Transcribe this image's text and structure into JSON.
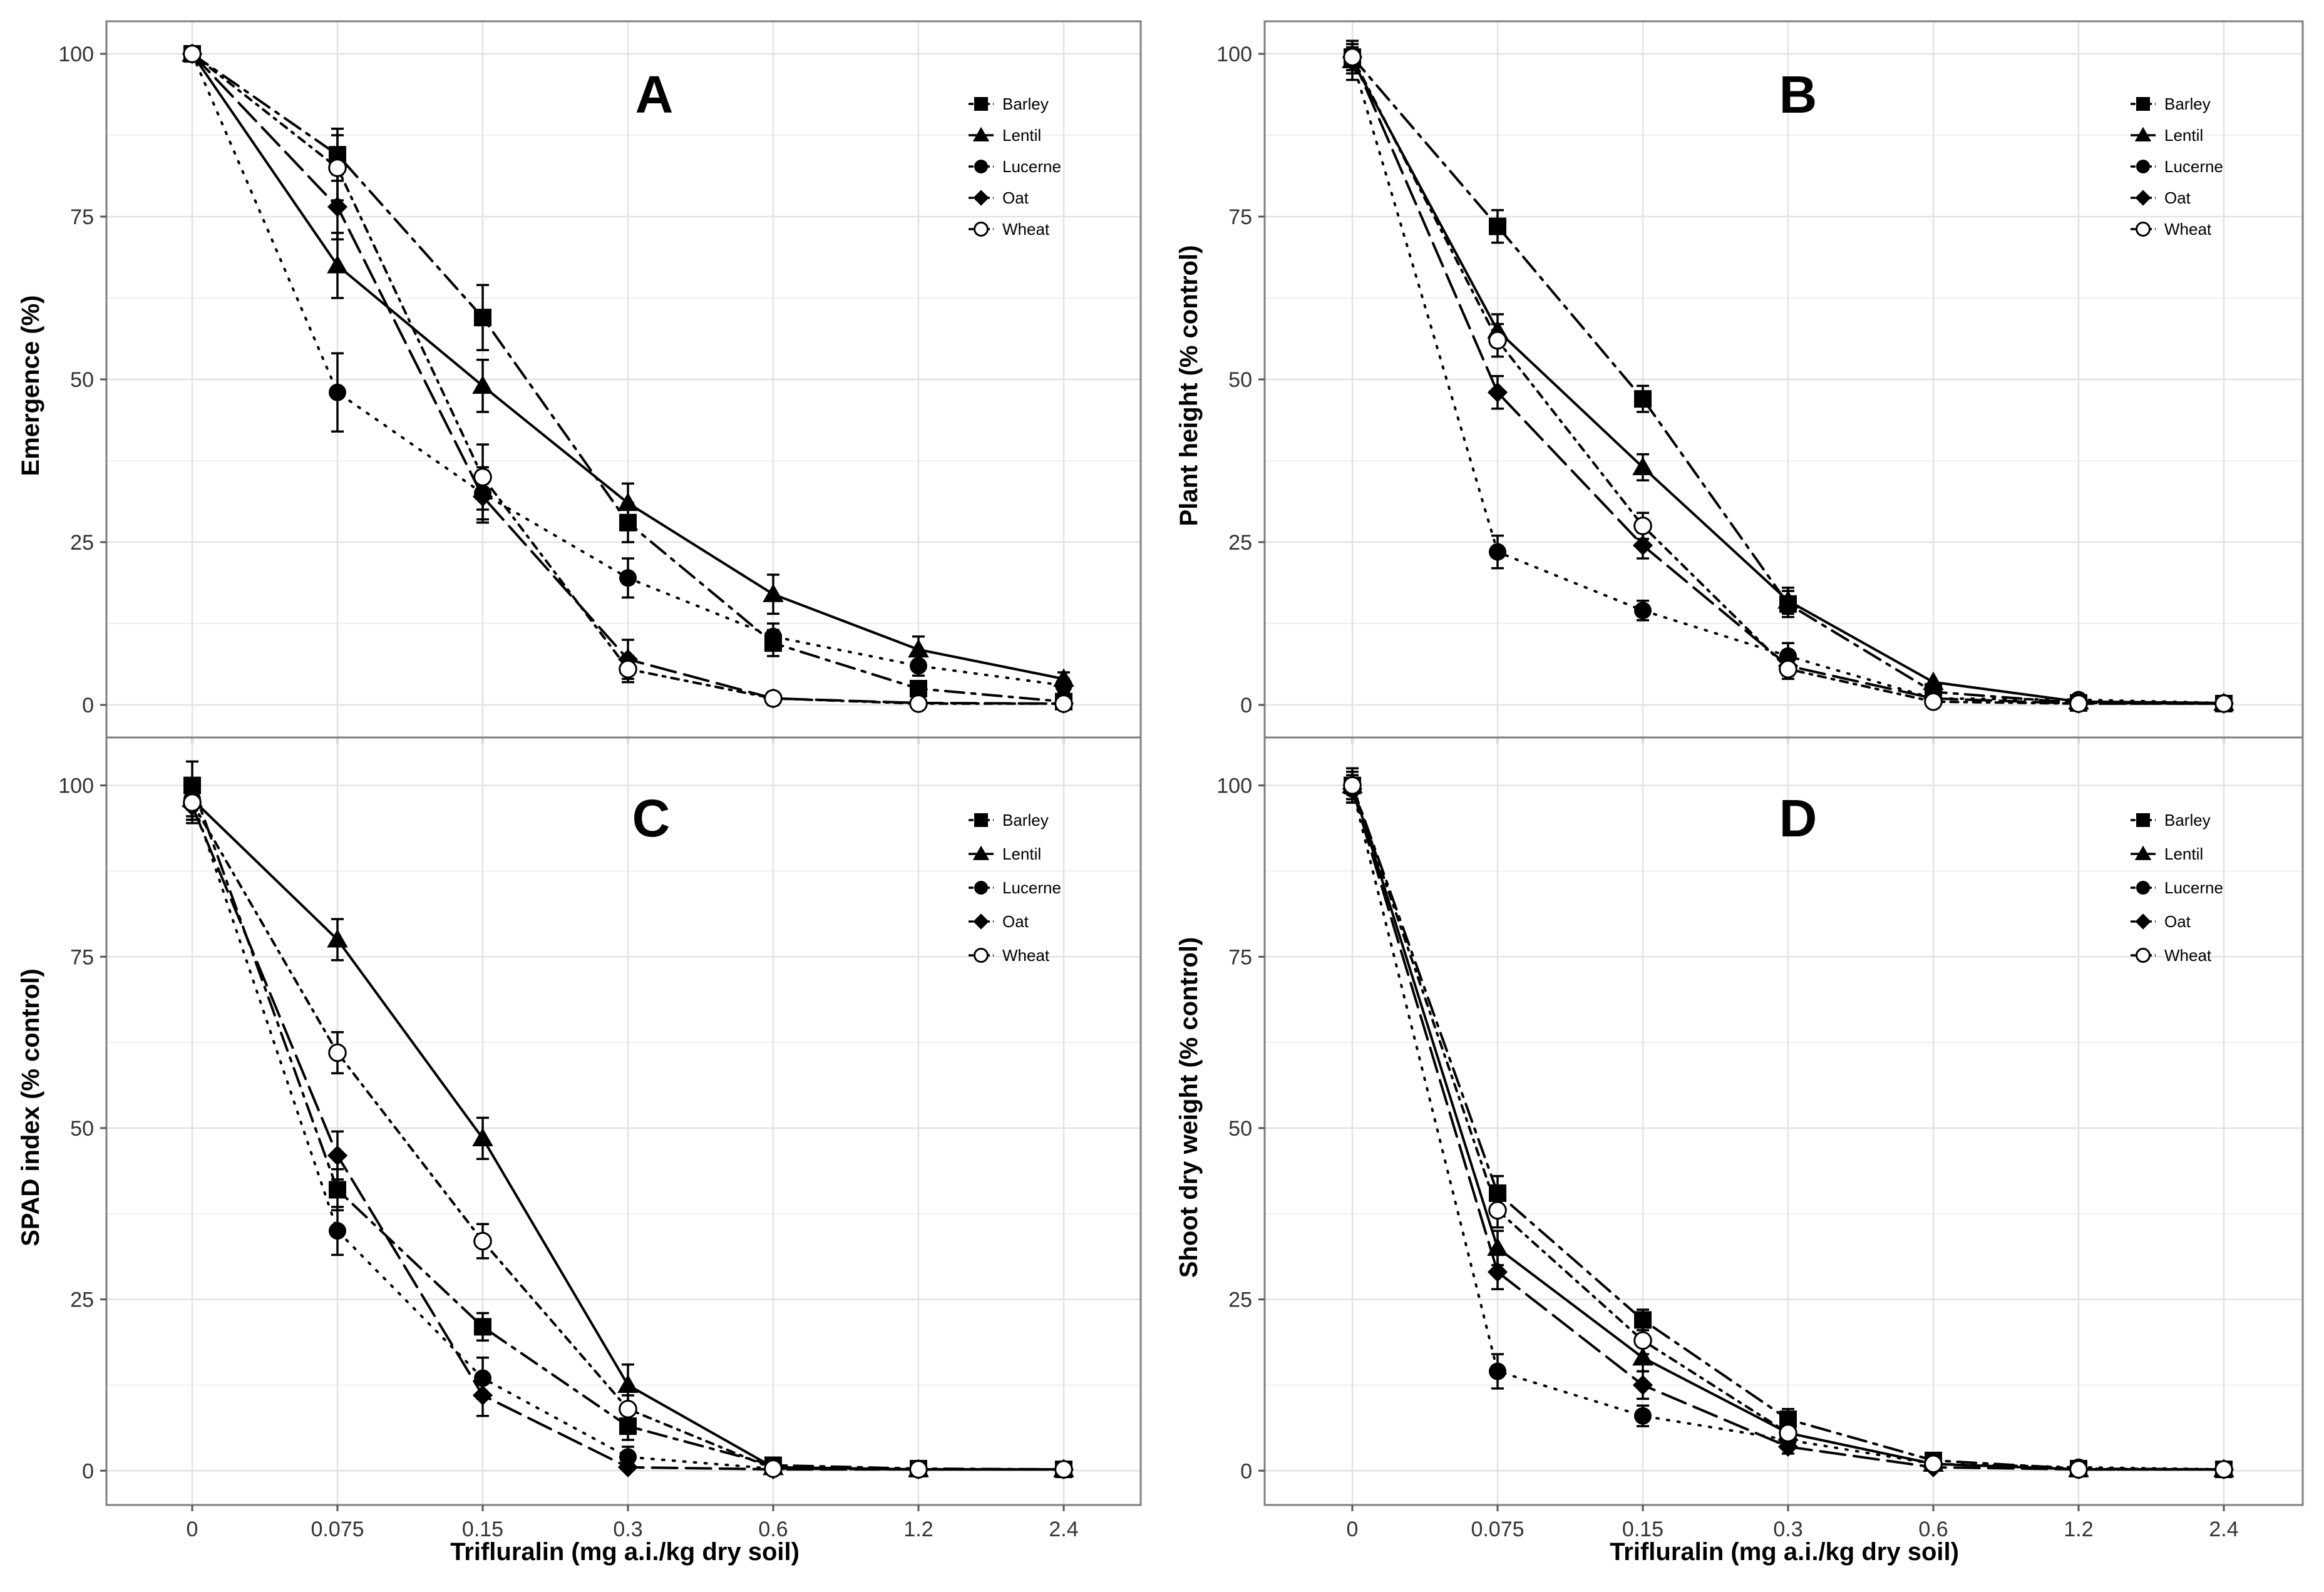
{
  "chart_data": [
    {
      "type": "line",
      "panel_label": "A",
      "title": "",
      "xlabel": "",
      "ylabel": "Emergence (%)",
      "ylim": [
        -5,
        105
      ],
      "yticks": [
        0,
        25,
        50,
        75,
        100
      ],
      "categories": [
        "0",
        "0.075",
        "0.15",
        "0.3",
        "0.6",
        "1.2",
        "2.4"
      ],
      "grid": true,
      "legend_position": "top-right",
      "series": [
        {
          "name": "Barley",
          "marker": "square",
          "dash": "dashdot",
          "values": [
            100,
            84.5,
            59.5,
            28,
            9.5,
            2.5,
            0.5
          ],
          "errors": [
            0,
            4,
            5,
            3,
            2,
            1,
            0.5
          ]
        },
        {
          "name": "Lentil",
          "marker": "triangle",
          "dash": "solid",
          "values": [
            100,
            67.5,
            49,
            31,
            17,
            8.5,
            4
          ],
          "errors": [
            0,
            5,
            4,
            3,
            3,
            2,
            1
          ]
        },
        {
          "name": "Lucerne",
          "marker": "circle",
          "dash": "dotted",
          "values": [
            100,
            48,
            32.5,
            19.5,
            10.5,
            6,
            3
          ],
          "errors": [
            0,
            6,
            4,
            3,
            2,
            1.5,
            1
          ]
        },
        {
          "name": "Oat",
          "marker": "diamond",
          "dash": "longdash",
          "values": [
            100,
            76.5,
            32,
            7,
            1,
            0.3,
            0.2
          ],
          "errors": [
            0,
            5,
            4,
            3,
            1,
            0.3,
            0.2
          ]
        },
        {
          "name": "Wheat",
          "marker": "open-circle",
          "dash": "dashdot2",
          "values": [
            100,
            82.5,
            35,
            5.5,
            1,
            0.2,
            0.2
          ],
          "errors": [
            0,
            5,
            5,
            2,
            1,
            0.3,
            0.2
          ]
        }
      ]
    },
    {
      "type": "line",
      "panel_label": "B",
      "title": "",
      "xlabel": "",
      "ylabel": "Plant height (% control)",
      "ylim": [
        -5,
        105
      ],
      "yticks": [
        0,
        25,
        50,
        75,
        100
      ],
      "categories": [
        "0",
        "0.075",
        "0.15",
        "0.3",
        "0.6",
        "1.2",
        "2.4"
      ],
      "grid": true,
      "legend_position": "top-right",
      "series": [
        {
          "name": "Barley",
          "marker": "square",
          "dash": "dashdot",
          "values": [
            99.5,
            73.5,
            47,
            15.5,
            2,
            0.3,
            0.2
          ],
          "errors": [
            0,
            2.5,
            2,
            2,
            0.5,
            0.3,
            0.2
          ]
        },
        {
          "name": "Lentil",
          "marker": "triangle",
          "dash": "solid",
          "values": [
            99,
            57.5,
            36.5,
            16,
            3.5,
            0.5,
            0.3
          ],
          "errors": [
            3,
            2.5,
            2,
            2,
            0.5,
            0.3,
            0.2
          ]
        },
        {
          "name": "Lucerne",
          "marker": "circle",
          "dash": "dotted",
          "values": [
            99,
            23.5,
            14.5,
            7.5,
            1,
            0.8,
            0.3
          ],
          "errors": [
            2,
            2.5,
            1.5,
            2,
            0.5,
            0.3,
            0.2
          ]
        },
        {
          "name": "Oat",
          "marker": "diamond",
          "dash": "longdash",
          "values": [
            99.5,
            48,
            24.5,
            6,
            1,
            0.2,
            0.2
          ],
          "errors": [
            2,
            2.5,
            2,
            1.5,
            0.5,
            0.2,
            0.2
          ]
        },
        {
          "name": "Wheat",
          "marker": "open-circle",
          "dash": "dashdot2",
          "values": [
            99.5,
            56,
            27.5,
            5.5,
            0.5,
            0.2,
            0.2
          ],
          "errors": [
            2,
            2.5,
            2,
            1.5,
            0.5,
            0.2,
            0.2
          ]
        }
      ]
    },
    {
      "type": "line",
      "panel_label": "C",
      "title": "",
      "xlabel": "Trifluralin (mg a.i./kg dry soil)",
      "ylabel": "SPAD index (% control)",
      "ylim": [
        -5,
        107
      ],
      "yticks": [
        0,
        25,
        50,
        75,
        100
      ],
      "categories": [
        "0",
        "0.075",
        "0.15",
        "0.3",
        "0.6",
        "1.2",
        "2.4"
      ],
      "grid": true,
      "legend_position": "top-right",
      "series": [
        {
          "name": "Barley",
          "marker": "square",
          "dash": "dashdot",
          "values": [
            100,
            41,
            21,
            6.5,
            0.8,
            0.3,
            0.2
          ],
          "errors": [
            3.5,
            3,
            2,
            2,
            0.5,
            0.3,
            0.2
          ]
        },
        {
          "name": "Lentil",
          "marker": "triangle",
          "dash": "solid",
          "values": [
            98,
            77.5,
            48.5,
            12.5,
            0.5,
            0.2,
            0.2
          ],
          "errors": [
            3,
            3,
            3,
            3,
            0.5,
            0.2,
            0.2
          ]
        },
        {
          "name": "Lucerne",
          "marker": "circle",
          "dash": "dotted",
          "values": [
            98,
            35,
            13.5,
            2,
            0.3,
            0.2,
            0.2
          ],
          "errors": [
            2.5,
            3.5,
            3,
            1.5,
            0.3,
            0.2,
            0.2
          ]
        },
        {
          "name": "Oat",
          "marker": "diamond",
          "dash": "longdash",
          "values": [
            97,
            46,
            11,
            0.5,
            0.2,
            0.2,
            0.2
          ],
          "errors": [
            2.5,
            3.5,
            3,
            0.5,
            0.2,
            0.2,
            0.2
          ]
        },
        {
          "name": "Wheat",
          "marker": "open-circle",
          "dash": "dashdot2",
          "values": [
            97.5,
            61,
            33.5,
            9,
            0.3,
            0.2,
            0.2
          ],
          "errors": [
            2.5,
            3,
            2.5,
            2,
            0.3,
            0.2,
            0.2
          ]
        }
      ]
    },
    {
      "type": "line",
      "panel_label": "D",
      "title": "",
      "xlabel": "Trifluralin (mg a.i./kg dry soil)",
      "ylabel": "Shoot dry weight (% control)",
      "ylim": [
        -5,
        107
      ],
      "yticks": [
        0,
        25,
        50,
        75,
        100
      ],
      "categories": [
        "0",
        "0.075",
        "0.15",
        "0.3",
        "0.6",
        "1.2",
        "2.4"
      ],
      "grid": true,
      "legend_position": "top-right",
      "series": [
        {
          "name": "Barley",
          "marker": "square",
          "dash": "dashdot",
          "values": [
            100,
            40.5,
            22,
            7.5,
            1.5,
            0.3,
            0.2
          ],
          "errors": [
            2.5,
            2.5,
            1.5,
            1.5,
            0.5,
            0.3,
            0.2
          ]
        },
        {
          "name": "Lentil",
          "marker": "triangle",
          "dash": "solid",
          "values": [
            100,
            32.5,
            16.5,
            5.5,
            1,
            0.2,
            0.2
          ],
          "errors": [
            2,
            2.5,
            2,
            1.5,
            0.5,
            0.2,
            0.2
          ]
        },
        {
          "name": "Lucerne",
          "marker": "circle",
          "dash": "dotted",
          "values": [
            99.5,
            14.5,
            8,
            4.5,
            1,
            0.5,
            0.2
          ],
          "errors": [
            2,
            2.5,
            1.5,
            1,
            0.5,
            0.3,
            0.2
          ]
        },
        {
          "name": "Oat",
          "marker": "diamond",
          "dash": "longdash",
          "values": [
            99.5,
            29,
            12.5,
            3.5,
            0.5,
            0.2,
            0.2
          ],
          "errors": [
            2,
            2.5,
            2,
            1,
            0.5,
            0.2,
            0.2
          ]
        },
        {
          "name": "Wheat",
          "marker": "open-circle",
          "dash": "dashdot2",
          "values": [
            100,
            38,
            19,
            5.5,
            1,
            0.2,
            0.2
          ],
          "errors": [
            2,
            2.5,
            2,
            1,
            0.5,
            0.2,
            0.2
          ]
        }
      ]
    }
  ]
}
